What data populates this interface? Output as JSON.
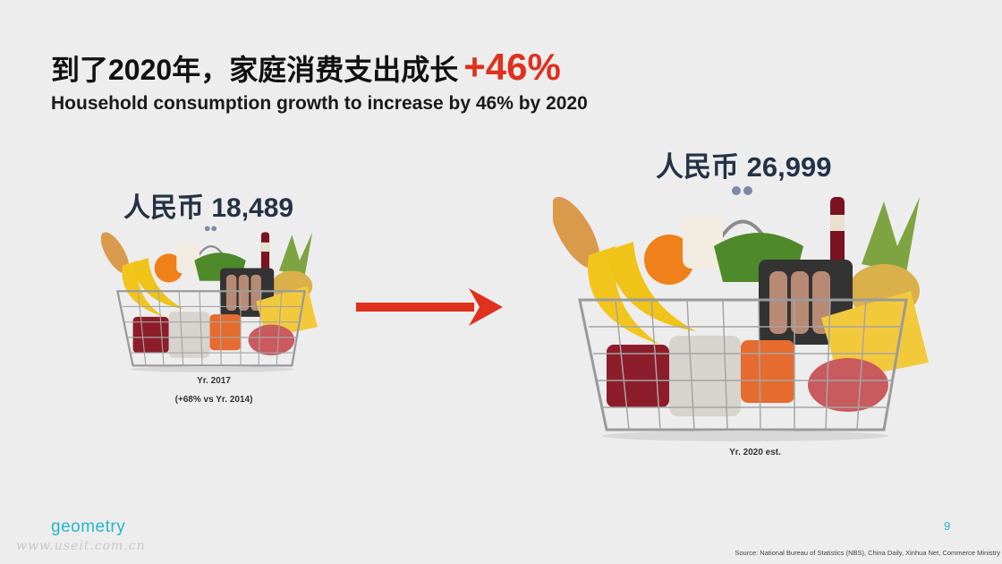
{
  "title": {
    "cn_prefix": "到了2020年，家庭消费支出成长",
    "cn_highlight": "+46%",
    "en": "Household consumption growth to increase by 46% by 2020"
  },
  "left": {
    "amount": "人民币 18,489",
    "year": "Yr. 2017",
    "note": "(+68% vs Yr. 2014)"
  },
  "right": {
    "amount": "人民币 26,999",
    "year": "Yr. 2020 est."
  },
  "footer": {
    "logo": "geometry",
    "watermark": "www.useit.com.cn",
    "page_number": "9",
    "source": "Source: National Bureau of Statistics (NBS), China Daily, Xinhua Net, Commerce Ministry"
  },
  "colors": {
    "accent_red": "#e0301e",
    "amount_navy": "#243246",
    "brand_teal": "#23b7c9",
    "background": "#ededed"
  },
  "icons": {
    "basket": "grocery-basket-icon",
    "arrow": "right-arrow-icon"
  }
}
